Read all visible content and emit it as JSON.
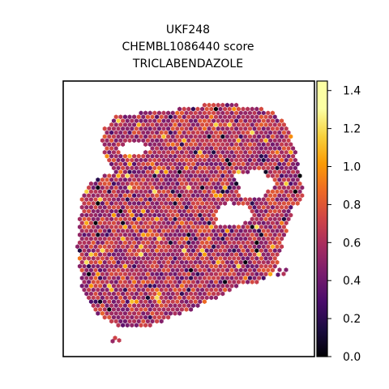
{
  "chart_data": {
    "type": "scatter",
    "subtype": "spatial hexagonal spot map",
    "title_lines": [
      "UKF248",
      "CHEMBL1086440 score",
      "TRICLABENDAZOLE"
    ],
    "axes": {
      "x_ticks": false,
      "y_ticks": false,
      "grid": false
    },
    "colorbar": {
      "colormap": "inferno",
      "range": [
        0.0,
        1.45
      ],
      "ticks": [
        0.0,
        0.2,
        0.4,
        0.6,
        0.8,
        1.0,
        1.2,
        1.4
      ],
      "tick_labels": [
        "0.0",
        "0.2",
        "0.4",
        "0.6",
        "0.8",
        "1.0",
        "1.2",
        "1.4"
      ],
      "placement": "right"
    },
    "score_summary": {
      "typical_range": [
        0.45,
        0.9
      ],
      "min": 0.0,
      "max": 1.45
    }
  }
}
